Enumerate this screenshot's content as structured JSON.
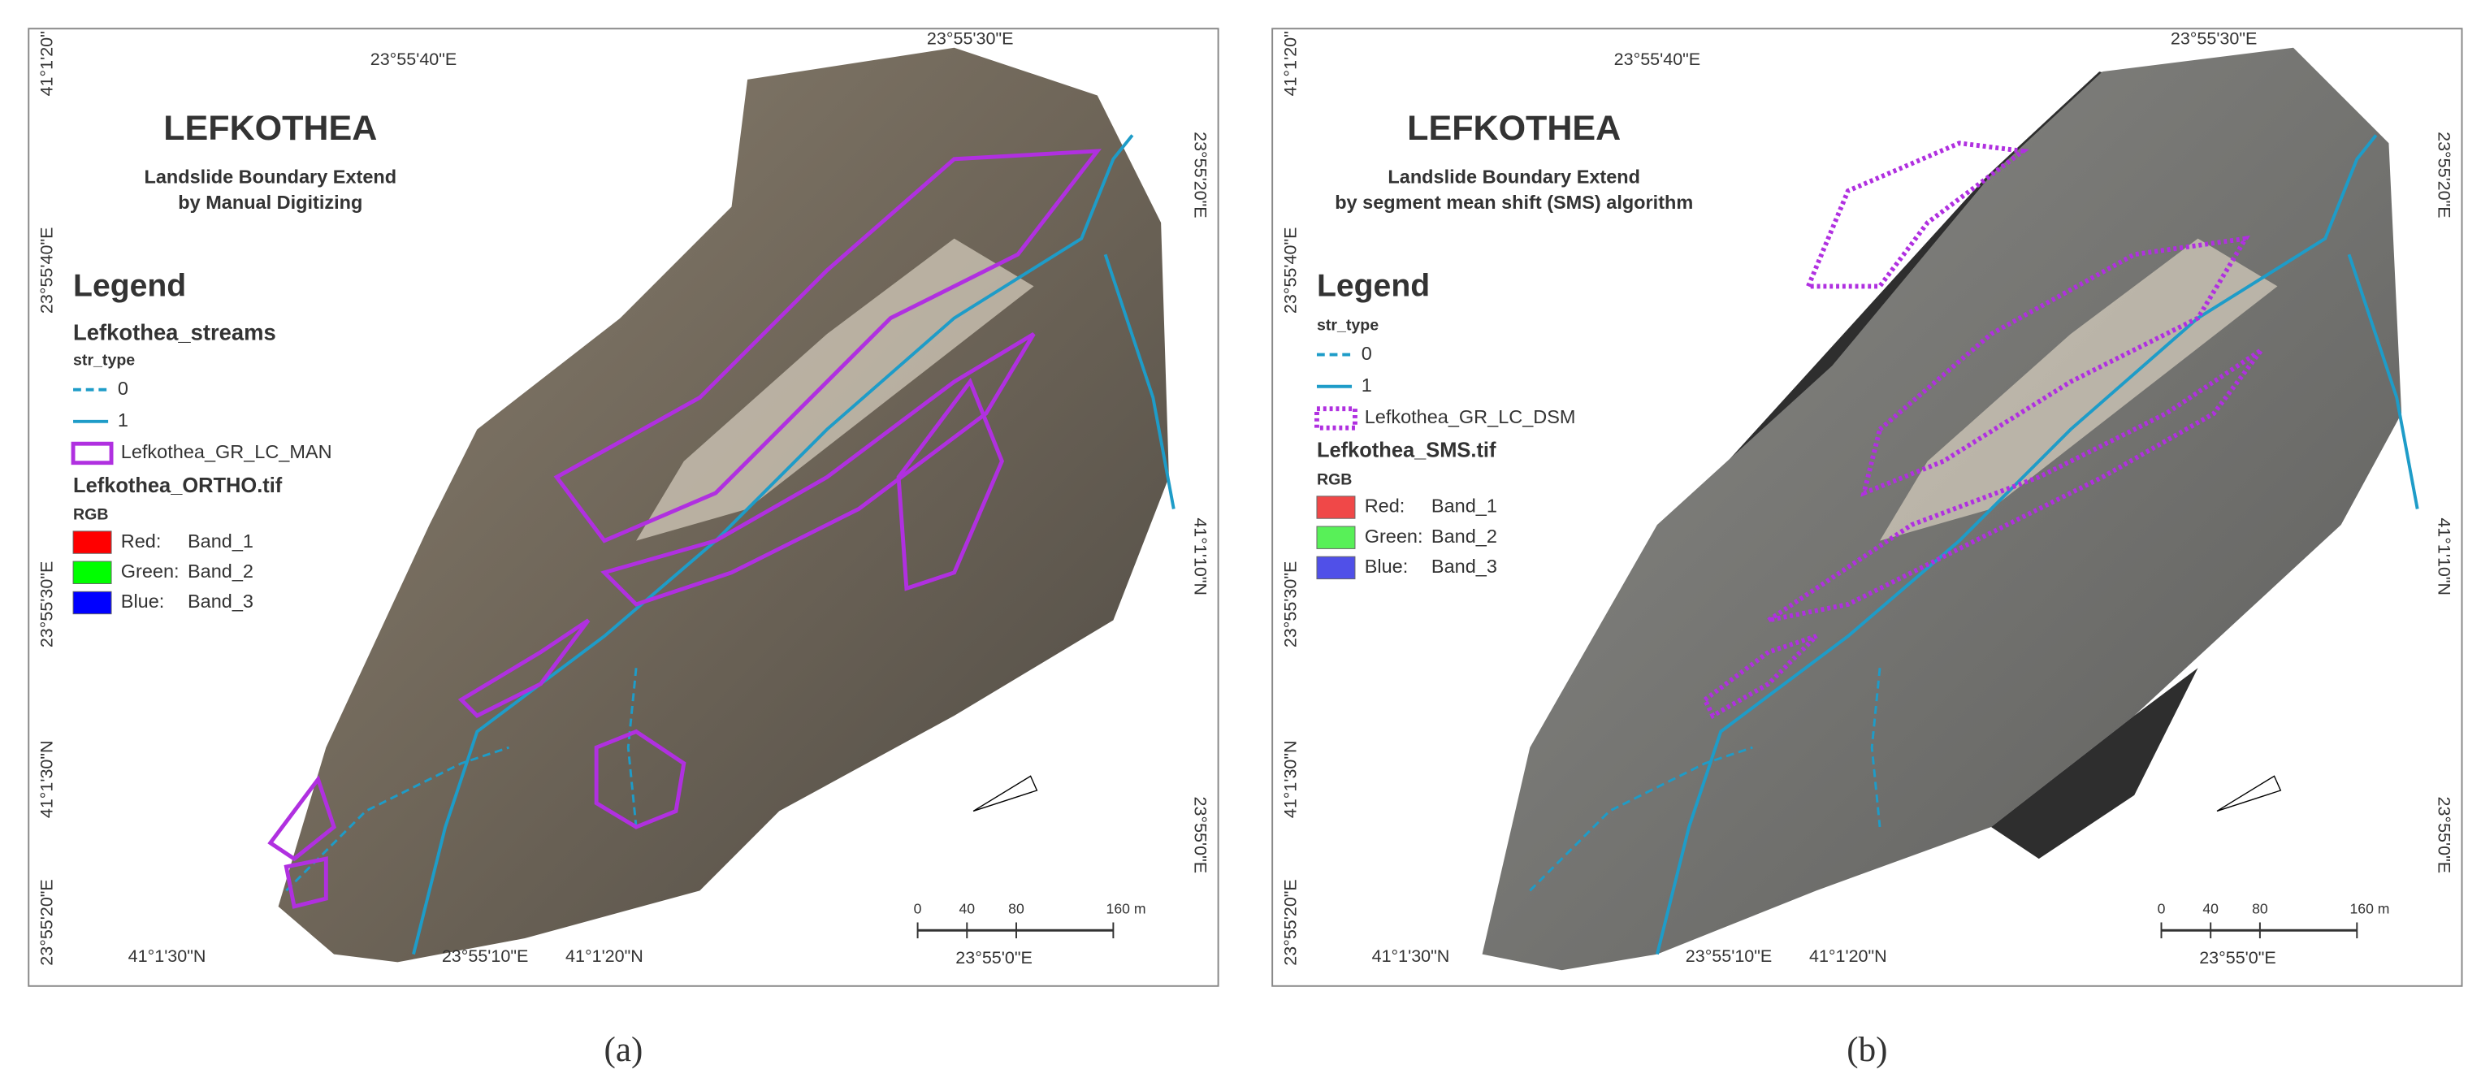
{
  "panels": [
    {
      "title": "LEFKOTHEA",
      "subtitle": [
        "Landslide Boundary Extend",
        "by Manual Digitizing"
      ],
      "legend": {
        "heading": "Legend",
        "streams_layer": "Lefkothea_streams",
        "field": "str_type",
        "stream_classes": [
          "0",
          "1"
        ],
        "boundary_layer": "Lefkothea_GR_LC_MAN",
        "raster_layer": "Lefkothea_ORTHO.tif",
        "raster_mode": "RGB",
        "bands": [
          [
            "Red:",
            "Band_1"
          ],
          [
            "Green:",
            "Band_2"
          ],
          [
            "Blue:",
            "Band_3"
          ]
        ]
      },
      "coordinates": {
        "top": [
          "23°55'40\"E",
          "23°55'30\"E"
        ],
        "left": [
          "41°1'20\"",
          "23°55'40\"E",
          "23°55'30\"E",
          "41°1'30\"N",
          "23°55'20\"E"
        ],
        "right": [
          "23°55'20\"E",
          "41°1'10\"N",
          "23°55'0\"E"
        ],
        "bottom": [
          "41°1'30\"N",
          "23°55'10\"E",
          "41°1'20\"N",
          "23°55'0\"E"
        ]
      },
      "scale_bar": [
        "0",
        "40",
        "80",
        "160 m"
      ],
      "caption": "(a)"
    },
    {
      "title": "LEFKOTHEA",
      "subtitle": [
        "Landslide Boundary Extend",
        "by segment mean shift (SMS) algorithm"
      ],
      "legend": {
        "heading": "Legend",
        "field": "str_type",
        "stream_classes": [
          "0",
          "1"
        ],
        "boundary_layer": "Lefkothea_GR_LC_DSM",
        "raster_layer": "Lefkothea_SMS.tif",
        "raster_mode": "RGB",
        "bands": [
          [
            "Red:",
            "Band_1"
          ],
          [
            "Green:",
            "Band_2"
          ],
          [
            "Blue:",
            "Band_3"
          ]
        ]
      },
      "coordinates": {
        "top": [
          "23°55'40\"E",
          "23°55'30\"E"
        ],
        "left": [
          "41°1'20\"",
          "23°55'40\"E",
          "23°55'30\"E",
          "41°1'30\"N",
          "23°55'20\"E"
        ],
        "right": [
          "23°55'20\"E",
          "41°1'10\"N",
          "23°55'0\"E"
        ],
        "bottom": [
          "41°1'30\"N",
          "23°55'10\"E",
          "41°1'20\"N",
          "23°55'0\"E"
        ]
      },
      "scale_bar": [
        "0",
        "40",
        "80",
        "160 m"
      ],
      "caption": "(b)"
    }
  ]
}
